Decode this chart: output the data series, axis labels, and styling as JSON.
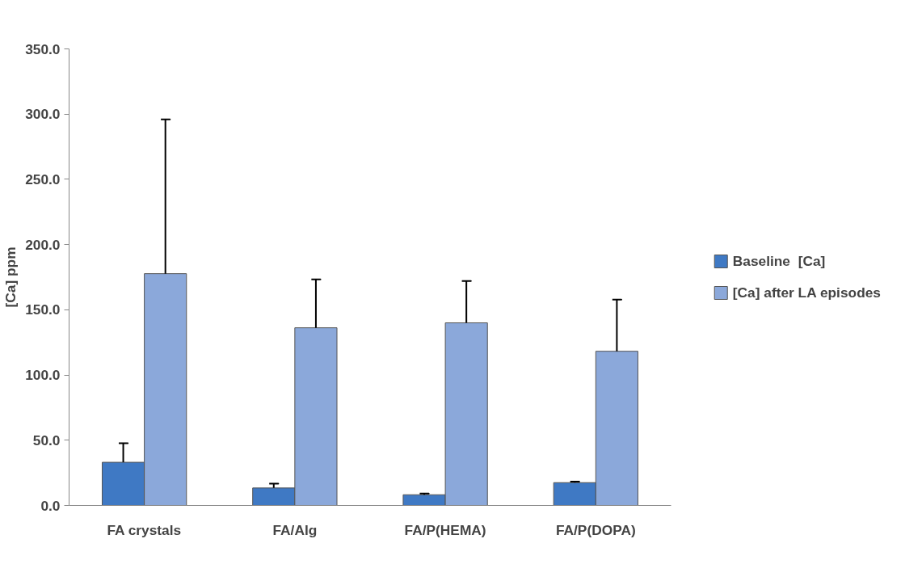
{
  "chart_data": {
    "type": "bar",
    "ylabel": "[Ca] ppm",
    "categories": [
      "FA crystals",
      "FA/Alg",
      "FA/P(HEMA)",
      "FA/P(DOPA)"
    ],
    "series": [
      {
        "name": "Baseline  [Ca]",
        "color": "#3f79c4",
        "values": [
          33.1,
          13.4,
          8.2,
          17.5
        ],
        "errors": [
          [
            33.1,
            47.7
          ],
          [
            13.4,
            16.8
          ],
          [
            8.2,
            9.2
          ],
          [
            17.5,
            18.3
          ]
        ]
      },
      {
        "name": "[Ca] after LA episodes",
        "color": "#8ba8da",
        "values": [
          177.7,
          136.2,
          140.0,
          118.2
        ],
        "errors": [
          [
            177.7,
            295.9
          ],
          [
            136.2,
            173.3
          ],
          [
            140.0,
            172.1
          ],
          [
            118.2,
            157.8
          ]
        ]
      }
    ],
    "ylim": [
      0,
      350
    ],
    "yticks": [
      {
        "value": 0,
        "label": "0.0"
      },
      {
        "value": 50,
        "label": "50.0"
      },
      {
        "value": 100,
        "label": "100.0"
      },
      {
        "value": 150,
        "label": "150.0"
      },
      {
        "value": 200,
        "label": "200.0"
      },
      {
        "value": 250,
        "label": "250.0"
      },
      {
        "value": 300,
        "label": "300.0"
      },
      {
        "value": 350,
        "label": "350.0"
      }
    ],
    "grid": false,
    "legend": "right"
  }
}
